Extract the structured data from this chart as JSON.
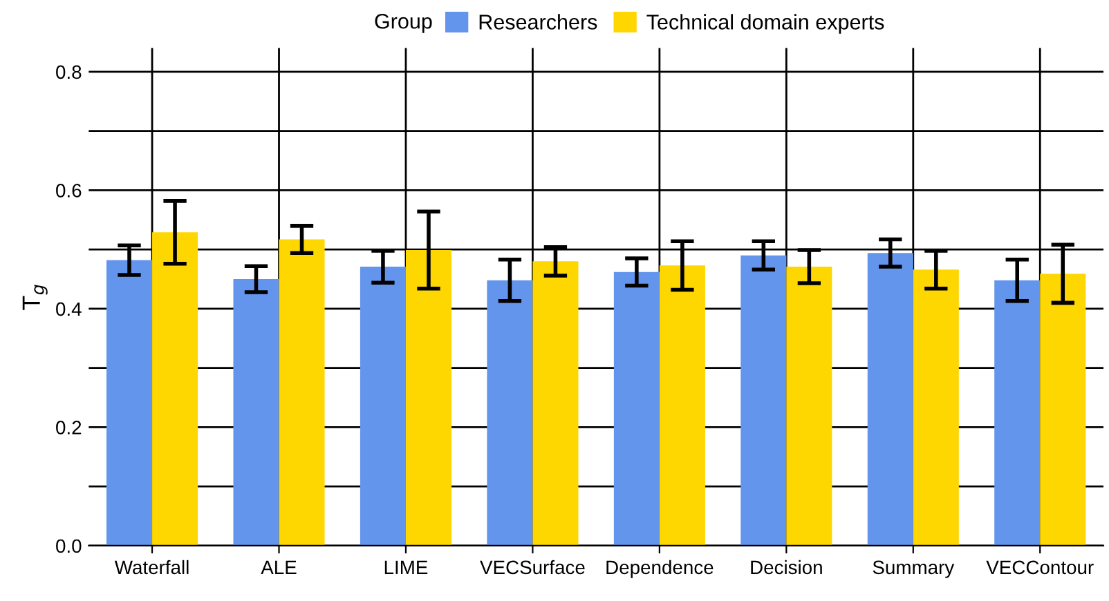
{
  "chart_data": {
    "type": "bar",
    "ylabel": "T$_{g}$",
    "legend_title": "Group",
    "legend": "top",
    "categories": [
      "Waterfall",
      "ALE",
      "LIME",
      "VECSurface",
      "Dependence",
      "Decision",
      "Summary",
      "VECContour"
    ],
    "series": [
      {
        "name": "Researchers",
        "color": "#6495ed",
        "values": [
          0.482,
          0.45,
          0.471,
          0.448,
          0.462,
          0.49,
          0.494,
          0.448
        ],
        "errors": [
          0.025,
          0.022,
          0.027,
          0.035,
          0.023,
          0.024,
          0.023,
          0.035
        ]
      },
      {
        "name": "Technical domain experts",
        "color": "#ffd700",
        "values": [
          0.529,
          0.517,
          0.499,
          0.48,
          0.473,
          0.471,
          0.466,
          0.459
        ],
        "errors": [
          0.053,
          0.023,
          0.065,
          0.024,
          0.041,
          0.028,
          0.032,
          0.049
        ]
      }
    ],
    "ylim": [
      0,
      0.84
    ],
    "yticks": [
      {
        "value": 0,
        "label": "0.0"
      },
      {
        "value": 0.1,
        "label": null
      },
      0.2,
      {
        "value": 0.3,
        "label": null
      },
      0.4,
      {
        "value": 0.5,
        "label": null
      },
      0.6,
      {
        "value": 0.7,
        "label": null
      },
      0.8
    ],
    "grid": true
  }
}
